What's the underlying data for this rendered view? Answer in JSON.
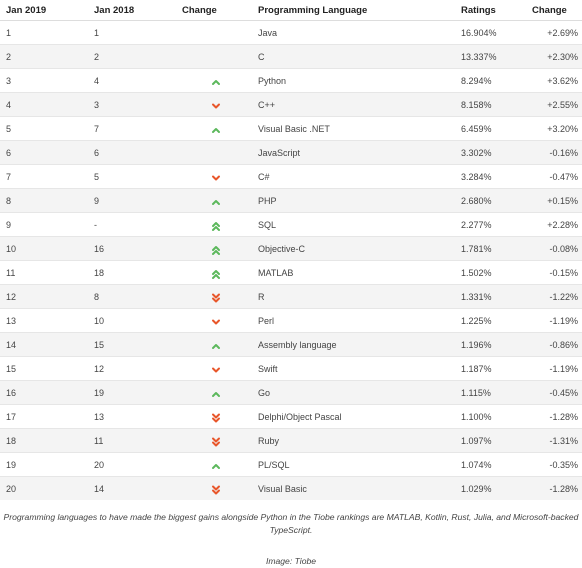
{
  "table": {
    "headers": {
      "jan2019": "Jan 2019",
      "jan2018": "Jan 2018",
      "change": "Change",
      "language": "Programming Language",
      "ratings": "Ratings",
      "delta": "Change"
    },
    "rows": [
      {
        "rank2019": "1",
        "rank2018": "1",
        "trend": "none",
        "language": "Java",
        "rating": "16.904%",
        "delta": "+2.69%"
      },
      {
        "rank2019": "2",
        "rank2018": "2",
        "trend": "none",
        "language": "C",
        "rating": "13.337%",
        "delta": "+2.30%"
      },
      {
        "rank2019": "3",
        "rank2018": "4",
        "trend": "up",
        "language": "Python",
        "rating": "8.294%",
        "delta": "+3.62%"
      },
      {
        "rank2019": "4",
        "rank2018": "3",
        "trend": "down",
        "language": "C++",
        "rating": "8.158%",
        "delta": "+2.55%"
      },
      {
        "rank2019": "5",
        "rank2018": "7",
        "trend": "up",
        "language": "Visual Basic .NET",
        "rating": "6.459%",
        "delta": "+3.20%"
      },
      {
        "rank2019": "6",
        "rank2018": "6",
        "trend": "none",
        "language": "JavaScript",
        "rating": "3.302%",
        "delta": "-0.16%"
      },
      {
        "rank2019": "7",
        "rank2018": "5",
        "trend": "down",
        "language": "C#",
        "rating": "3.284%",
        "delta": "-0.47%"
      },
      {
        "rank2019": "8",
        "rank2018": "9",
        "trend": "up",
        "language": "PHP",
        "rating": "2.680%",
        "delta": "+0.15%"
      },
      {
        "rank2019": "9",
        "rank2018": "-",
        "trend": "up-double",
        "language": "SQL",
        "rating": "2.277%",
        "delta": "+2.28%"
      },
      {
        "rank2019": "10",
        "rank2018": "16",
        "trend": "up-double",
        "language": "Objective-C",
        "rating": "1.781%",
        "delta": "-0.08%"
      },
      {
        "rank2019": "11",
        "rank2018": "18",
        "trend": "up-double",
        "language": "MATLAB",
        "rating": "1.502%",
        "delta": "-0.15%"
      },
      {
        "rank2019": "12",
        "rank2018": "8",
        "trend": "down-double",
        "language": "R",
        "rating": "1.331%",
        "delta": "-1.22%"
      },
      {
        "rank2019": "13",
        "rank2018": "10",
        "trend": "down",
        "language": "Perl",
        "rating": "1.225%",
        "delta": "-1.19%"
      },
      {
        "rank2019": "14",
        "rank2018": "15",
        "trend": "up",
        "language": "Assembly language",
        "rating": "1.196%",
        "delta": "-0.86%"
      },
      {
        "rank2019": "15",
        "rank2018": "12",
        "trend": "down",
        "language": "Swift",
        "rating": "1.187%",
        "delta": "-1.19%"
      },
      {
        "rank2019": "16",
        "rank2018": "19",
        "trend": "up",
        "language": "Go",
        "rating": "1.115%",
        "delta": "-0.45%"
      },
      {
        "rank2019": "17",
        "rank2018": "13",
        "trend": "down-double",
        "language": "Delphi/Object Pascal",
        "rating": "1.100%",
        "delta": "-1.28%"
      },
      {
        "rank2019": "18",
        "rank2018": "11",
        "trend": "down-double",
        "language": "Ruby",
        "rating": "1.097%",
        "delta": "-1.31%"
      },
      {
        "rank2019": "19",
        "rank2018": "20",
        "trend": "up",
        "language": "PL/SQL",
        "rating": "1.074%",
        "delta": "-0.35%"
      },
      {
        "rank2019": "20",
        "rank2018": "14",
        "trend": "down-double",
        "language": "Visual Basic",
        "rating": "1.029%",
        "delta": "-1.28%"
      }
    ]
  },
  "colors": {
    "up": "#5cb85c",
    "down": "#e8562a",
    "row_stripe": "#f4f4f4",
    "border": "#e6e6e6"
  },
  "icons": {
    "up": "chevron-up-icon",
    "up-double": "double-chevron-up-icon",
    "down": "chevron-down-icon",
    "down-double": "double-chevron-down-icon"
  },
  "caption": "Programming languages to have made the biggest gains alongside Python in the Tiobe rankings are MATLAB, Kotlin, Rust, Julia, and Microsoft-backed TypeScript.",
  "credit": "Image: Tiobe"
}
